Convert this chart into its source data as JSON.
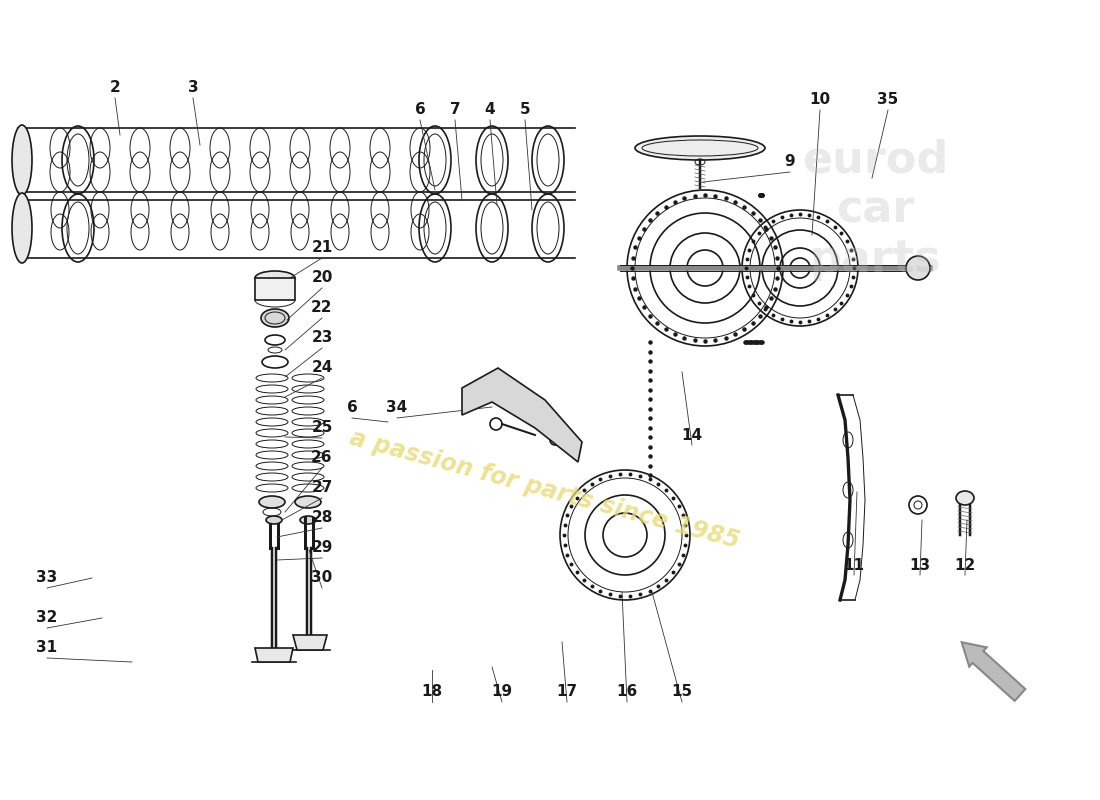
{
  "background_color": "#ffffff",
  "watermark_text": "a passion for parts since 1985",
  "watermark_color": "#e8d870",
  "line_color": "#1a1a1a",
  "label_fontsize": 11,
  "label_fontweight": "bold",
  "labels_data": [
    [
      "2",
      115,
      88,
      120,
      135
    ],
    [
      "3",
      193,
      88,
      200,
      145
    ],
    [
      "6",
      420,
      110,
      435,
      190
    ],
    [
      "7",
      455,
      110,
      462,
      200
    ],
    [
      "4",
      490,
      110,
      497,
      205
    ],
    [
      "5",
      525,
      110,
      532,
      210
    ],
    [
      "10",
      820,
      100,
      812,
      235
    ],
    [
      "35",
      888,
      100,
      872,
      178
    ],
    [
      "9",
      790,
      162,
      703,
      182
    ],
    [
      "21",
      322,
      248,
      290,
      278
    ],
    [
      "20",
      322,
      278,
      287,
      320
    ],
    [
      "22",
      322,
      308,
      285,
      350
    ],
    [
      "23",
      322,
      338,
      285,
      377
    ],
    [
      "24",
      322,
      368,
      285,
      397
    ],
    [
      "6",
      352,
      408,
      388,
      422
    ],
    [
      "34",
      397,
      408,
      492,
      407
    ],
    [
      "25",
      322,
      428,
      285,
      437
    ],
    [
      "26",
      322,
      458,
      285,
      512
    ],
    [
      "27",
      322,
      488,
      282,
      520
    ],
    [
      "28",
      322,
      518,
      277,
      537
    ],
    [
      "14",
      692,
      435,
      682,
      372
    ],
    [
      "29",
      322,
      548,
      277,
      560
    ],
    [
      "30",
      322,
      578,
      309,
      550
    ],
    [
      "33",
      47,
      578,
      92,
      578
    ],
    [
      "32",
      47,
      618,
      102,
      618
    ],
    [
      "31",
      47,
      648,
      132,
      662
    ],
    [
      "18",
      432,
      692,
      432,
      670
    ],
    [
      "19",
      502,
      692,
      492,
      667
    ],
    [
      "17",
      567,
      692,
      562,
      642
    ],
    [
      "16",
      627,
      692,
      622,
      592
    ],
    [
      "15",
      682,
      692,
      652,
      592
    ],
    [
      "11",
      854,
      565,
      857,
      492
    ],
    [
      "13",
      920,
      565,
      922,
      520
    ],
    [
      "12",
      965,
      565,
      967,
      520
    ]
  ]
}
